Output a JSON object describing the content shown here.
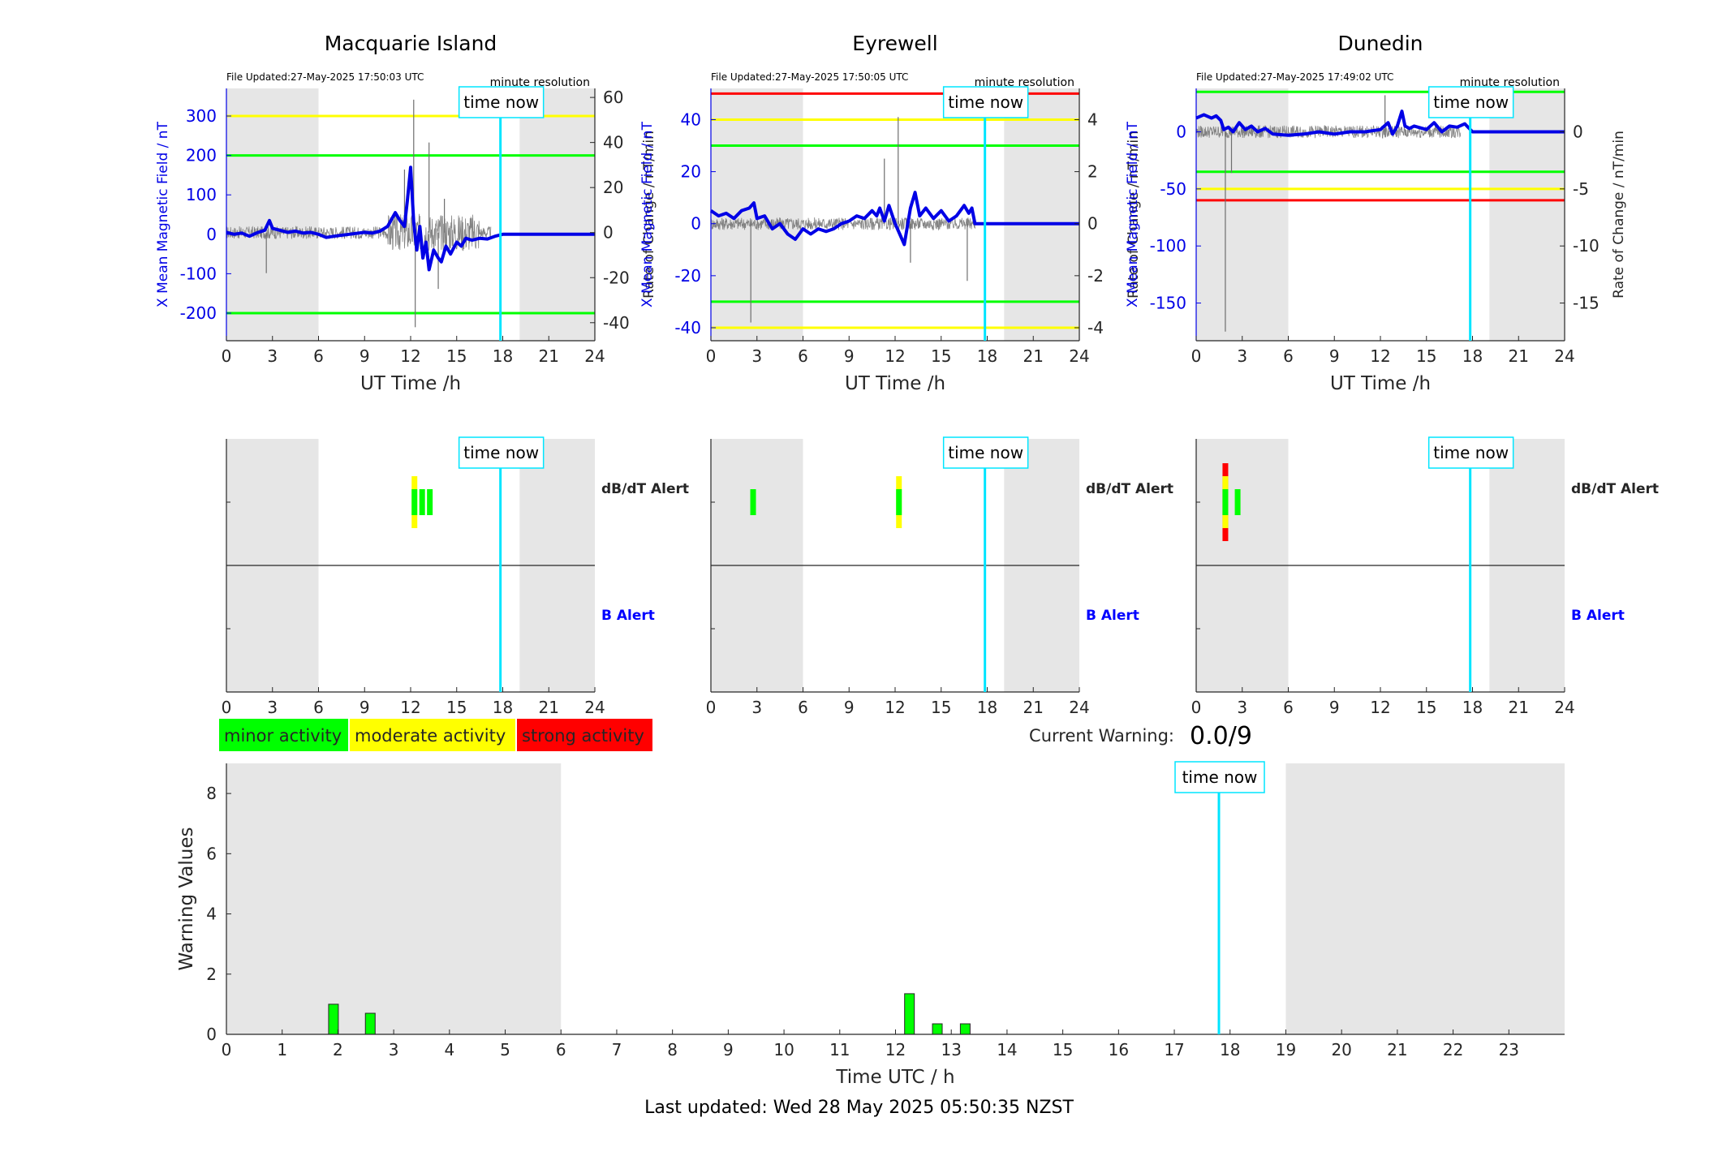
{
  "colors": {
    "shade": "#e6e6e6",
    "x_series": "#0000e6",
    "rate_series": "#6e6e6e",
    "time_now": "#00e5ff",
    "green": "#00ff00",
    "yellow": "#ffff00",
    "red": "#ff0000",
    "b_alert": "#0000ff"
  },
  "labels": {
    "x_axis_top": "UT Time /h",
    "y_left_top": "X Mean Magnetic Field / nT",
    "y_right_top": "Rate of Change / nT/min",
    "time_now": "time now",
    "minute_resolution": "minute resolution",
    "dbdt_alert": "dB/dT Alert",
    "b_alert": "B Alert",
    "current_warning_label": "Current Warning:",
    "current_warning_value": "0.0/9",
    "bottom_xlabel": "Time UTC / h",
    "bottom_ylabel": "Warning Values",
    "last_updated": "Last updated: Wed 28 May 2025 05:50:35 NZST"
  },
  "legend": [
    {
      "label": "minor activity",
      "color": "#00ff00"
    },
    {
      "label": "moderate activity",
      "color": "#ffff00"
    },
    {
      "label": "strong activity",
      "color": "#ff0000"
    }
  ],
  "chart_data": [
    {
      "type": "line",
      "title": "Macquarie Island",
      "file_updated": "File Updated:27-May-2025 17:50:03 UTC",
      "xlim": [
        0,
        24
      ],
      "x_ticks": [
        0,
        3,
        6,
        9,
        12,
        15,
        18,
        21,
        24
      ],
      "ylim_left": [
        -270,
        370
      ],
      "y_ticks_left": [
        -200,
        -100,
        0,
        100,
        200,
        300
      ],
      "ylim_right": [
        -48,
        64
      ],
      "y_ticks_right": [
        -40,
        -20,
        0,
        20,
        40,
        60
      ],
      "shaded_hours": [
        [
          0,
          6
        ],
        [
          19.1,
          24
        ]
      ],
      "time_now": 17.85,
      "thresholds_left": [
        {
          "value": 300,
          "color": "yellow"
        },
        {
          "value": 200,
          "color": "green"
        },
        {
          "value": -200,
          "color": "green"
        }
      ],
      "x_series": {
        "x": [
          0,
          0.5,
          1,
          1.5,
          2,
          2.5,
          2.8,
          3,
          3.5,
          4,
          4.5,
          5,
          5.5,
          6,
          6.5,
          7,
          8,
          9,
          9.5,
          10,
          10.5,
          11,
          11.3,
          11.6,
          11.8,
          12,
          12.2,
          12.4,
          12.6,
          12.8,
          13,
          13.2,
          13.5,
          13.8,
          14,
          14.3,
          14.6,
          15,
          15.3,
          15.6,
          16,
          16.5,
          17,
          17.5,
          18,
          24
        ],
        "y": [
          5,
          0,
          3,
          -5,
          4,
          10,
          35,
          15,
          10,
          5,
          8,
          3,
          5,
          0,
          -8,
          -5,
          0,
          5,
          3,
          8,
          20,
          55,
          35,
          20,
          90,
          170,
          30,
          -40,
          20,
          -60,
          -20,
          -90,
          -40,
          -60,
          -70,
          -30,
          -50,
          -20,
          -30,
          -10,
          -15,
          -10,
          -12,
          -5,
          0,
          0
        ]
      },
      "rate_peaks": [
        {
          "x": 2.6,
          "y": -18
        },
        {
          "x": 11.6,
          "y": 28
        },
        {
          "x": 12.2,
          "y": 59
        },
        {
          "x": 12.3,
          "y": -42
        },
        {
          "x": 13.2,
          "y": 40
        },
        {
          "x": 13.8,
          "y": -25
        },
        {
          "x": 14.2,
          "y": 15
        }
      ]
    },
    {
      "type": "line",
      "title": "Eyrewell",
      "file_updated": "File Updated:27-May-2025 17:50:05 UTC",
      "xlim": [
        0,
        24
      ],
      "x_ticks": [
        0,
        3,
        6,
        9,
        12,
        15,
        18,
        21,
        24
      ],
      "ylim_left": [
        -45,
        52
      ],
      "y_ticks_left": [
        -40,
        -20,
        0,
        20,
        40
      ],
      "ylim_right": [
        -4.5,
        5.2
      ],
      "y_ticks_right": [
        -4,
        -2,
        0,
        2,
        4
      ],
      "shaded_hours": [
        [
          0,
          6
        ],
        [
          19.1,
          24
        ]
      ],
      "time_now": 17.85,
      "thresholds_left": [
        {
          "value": 50,
          "color": "red"
        },
        {
          "value": 40,
          "color": "yellow"
        },
        {
          "value": 30,
          "color": "green"
        },
        {
          "value": -30,
          "color": "green"
        },
        {
          "value": -40,
          "color": "yellow"
        }
      ],
      "x_series": {
        "x": [
          0,
          0.5,
          1,
          1.5,
          2,
          2.5,
          2.8,
          3,
          3.5,
          4,
          4.5,
          5,
          5.5,
          6,
          6.5,
          7,
          7.5,
          8,
          8.5,
          9,
          9.5,
          10,
          10.5,
          10.8,
          11,
          11.3,
          11.6,
          12,
          12.3,
          12.6,
          13,
          13.3,
          13.6,
          14,
          14.5,
          15,
          15.5,
          16,
          16.5,
          16.8,
          17,
          17.2,
          24
        ],
        "y": [
          5,
          3,
          4,
          2,
          5,
          6,
          8,
          2,
          3,
          -2,
          0,
          -4,
          -6,
          -2,
          -4,
          -2,
          -3,
          -2,
          0,
          1,
          3,
          2,
          5,
          3,
          6,
          1,
          7,
          0,
          -4,
          -8,
          6,
          12,
          3,
          6,
          2,
          5,
          1,
          3,
          7,
          4,
          6,
          0,
          0
        ]
      },
      "rate_peaks": [
        {
          "x": 2.6,
          "y": -3.8
        },
        {
          "x": 11.3,
          "y": 2.5
        },
        {
          "x": 12.2,
          "y": 4.1
        },
        {
          "x": 13,
          "y": -1.5
        },
        {
          "x": 16.7,
          "y": -2.2
        }
      ]
    },
    {
      "type": "line",
      "title": "Dunedin",
      "file_updated": "File Updated:27-May-2025 17:49:02 UTC",
      "xlim": [
        0,
        24
      ],
      "x_ticks": [
        0,
        3,
        6,
        9,
        12,
        15,
        18,
        21,
        24
      ],
      "ylim_left": [
        -183,
        38
      ],
      "y_ticks_left": [
        -150,
        -100,
        -50,
        0
      ],
      "ylim_right": [
        -18.3,
        3.8
      ],
      "y_ticks_right": [
        -15,
        -10,
        -5,
        0
      ],
      "shaded_hours": [
        [
          0,
          6
        ],
        [
          19.1,
          24
        ]
      ],
      "time_now": 17.85,
      "thresholds_left": [
        {
          "value": 35,
          "color": "green"
        },
        {
          "value": -35,
          "color": "green"
        },
        {
          "value": -50,
          "color": "yellow"
        },
        {
          "value": -60,
          "color": "red"
        }
      ],
      "x_series": {
        "x": [
          0,
          0.5,
          1,
          1.3,
          1.6,
          1.8,
          2.1,
          2.4,
          2.8,
          3.2,
          3.6,
          4,
          4.5,
          5,
          6,
          7,
          8,
          9,
          10,
          11,
          12,
          12.5,
          12.8,
          13.1,
          13.4,
          13.6,
          13.9,
          14.2,
          15,
          15.5,
          16,
          16.5,
          17,
          17.5,
          18,
          24
        ],
        "y": [
          12,
          15,
          12,
          14,
          10,
          2,
          4,
          0,
          8,
          2,
          5,
          0,
          3,
          -2,
          -3,
          -2,
          0,
          -2,
          0,
          0,
          2,
          8,
          -2,
          5,
          18,
          5,
          3,
          5,
          2,
          8,
          0,
          5,
          4,
          7,
          0,
          0
        ]
      },
      "rate_peaks": [
        {
          "x": 1.9,
          "y": -17.5
        },
        {
          "x": 2.3,
          "y": -3.6
        },
        {
          "x": 12.3,
          "y": 3.2
        }
      ]
    },
    {
      "type": "alert_strip",
      "title": "Macquarie Island dB/dT Alert",
      "x_ticks": [
        0,
        3,
        6,
        9,
        12,
        15,
        18,
        21,
        24
      ],
      "shaded_hours": [
        [
          0,
          6
        ],
        [
          19.1,
          24
        ]
      ],
      "time_now": 17.85,
      "dbdt_bars": [
        {
          "hour": 12.25,
          "level": "moderate"
        },
        {
          "hour": 12.75,
          "level": "minor"
        },
        {
          "hour": 13.25,
          "level": "minor"
        }
      ],
      "b_bars": []
    },
    {
      "type": "alert_strip",
      "title": "Eyrewell dB/dT Alert",
      "x_ticks": [
        0,
        3,
        6,
        9,
        12,
        15,
        18,
        21,
        24
      ],
      "shaded_hours": [
        [
          0,
          6
        ],
        [
          19.1,
          24
        ]
      ],
      "time_now": 17.85,
      "dbdt_bars": [
        {
          "hour": 2.75,
          "level": "minor"
        },
        {
          "hour": 12.25,
          "level": "moderate"
        }
      ],
      "b_bars": []
    },
    {
      "type": "alert_strip",
      "title": "Dunedin dB/dT Alert",
      "x_ticks": [
        0,
        3,
        6,
        9,
        12,
        15,
        18,
        21,
        24
      ],
      "shaded_hours": [
        [
          0,
          6
        ],
        [
          19.1,
          24
        ]
      ],
      "time_now": 17.85,
      "dbdt_bars": [
        {
          "hour": 1.9,
          "level": "strong"
        },
        {
          "hour": 2.7,
          "level": "minor"
        }
      ],
      "b_bars": []
    },
    {
      "type": "bar",
      "title": "Warning Values",
      "xlabel": "Time UTC / h",
      "ylabel": "Warning Values",
      "xlim": [
        0,
        24
      ],
      "ylim": [
        0,
        9
      ],
      "x_ticks": [
        0,
        1,
        2,
        3,
        4,
        5,
        6,
        7,
        8,
        9,
        10,
        11,
        12,
        13,
        14,
        15,
        16,
        17,
        18,
        19,
        20,
        21,
        22,
        23
      ],
      "y_ticks": [
        0,
        2,
        4,
        6,
        8
      ],
      "shaded_hours": [
        [
          0,
          6
        ],
        [
          19,
          24
        ]
      ],
      "time_now": 17.8,
      "bars": [
        {
          "hour": 1.92,
          "value": 1.0
        },
        {
          "hour": 2.58,
          "value": 0.7
        },
        {
          "hour": 12.25,
          "value": 1.35
        },
        {
          "hour": 12.75,
          "value": 0.35
        },
        {
          "hour": 13.25,
          "value": 0.35
        }
      ]
    }
  ]
}
